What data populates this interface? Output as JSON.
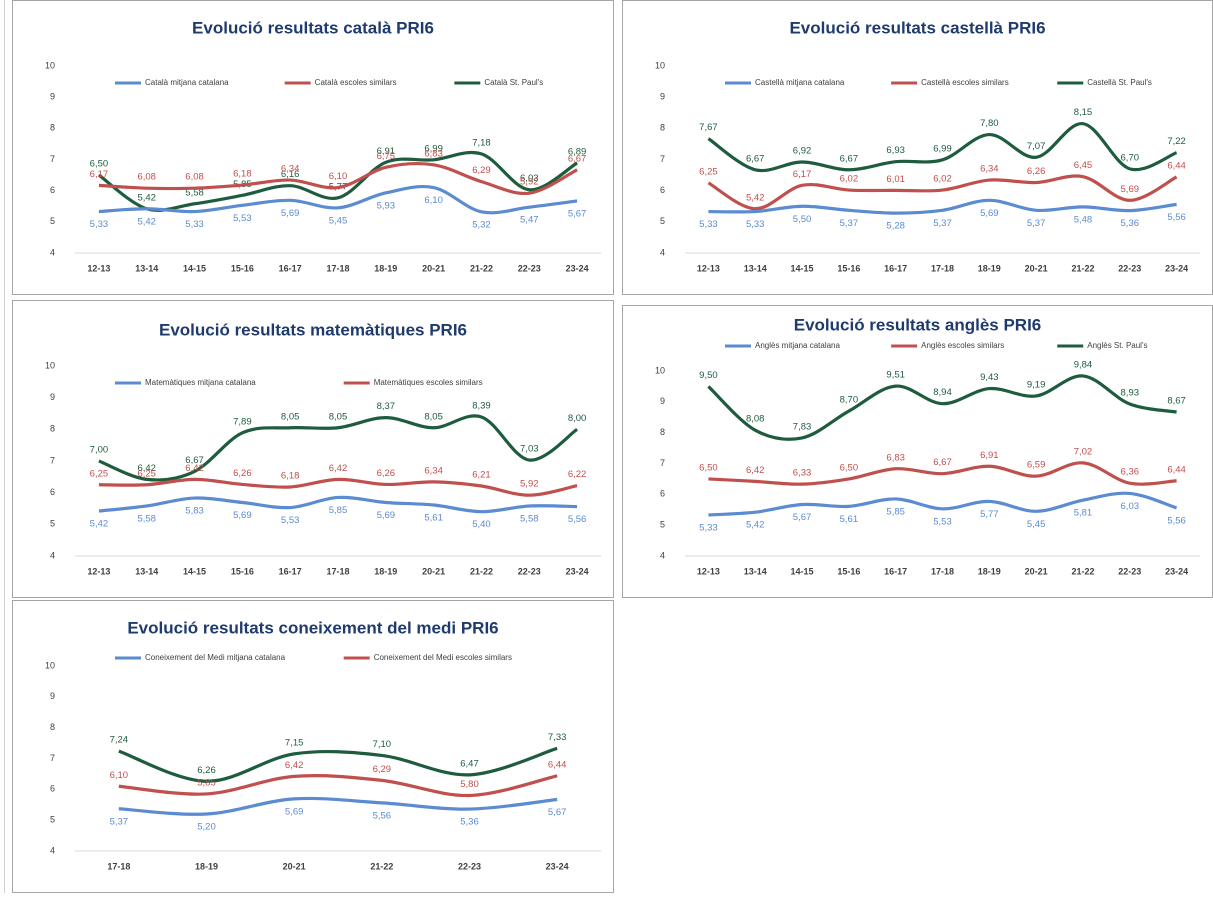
{
  "chart_data": [
    {
      "type": "line",
      "title": "Evolució resultats català PRI6",
      "categories": [
        "12-13",
        "13-14",
        "14-15",
        "15-16",
        "16-17",
        "17-18",
        "18-19",
        "20-21",
        "21-22",
        "22-23",
        "23-24"
      ],
      "ylim": [
        4,
        10
      ],
      "yticks": [
        4,
        5,
        6,
        7,
        8,
        9,
        10
      ],
      "series": [
        {
          "name": "Català mitjana catalana",
          "color": "#5b8bd0",
          "values": [
            5.33,
            5.42,
            5.33,
            5.53,
            5.69,
            5.45,
            5.93,
            6.1,
            5.32,
            5.47,
            5.67
          ],
          "value_labels": [
            "5,33",
            "5,42",
            "5,33",
            "5,53",
            "5,69",
            "5,45",
            "5,93",
            "6,10",
            "5,32",
            "5,47",
            "5,67"
          ]
        },
        {
          "name": "Català escoles similars",
          "color": "#c0504d",
          "values": [
            6.17,
            6.08,
            6.08,
            6.18,
            6.34,
            6.1,
            6.75,
            6.83,
            6.29,
            5.92,
            6.67
          ],
          "value_labels": [
            "6,17",
            "6,08",
            "6,08",
            "6,18",
            "6,34",
            "6,10",
            "6,75",
            "6,83",
            "6,29",
            "5,92",
            "6,67"
          ]
        },
        {
          "name": "Català St. Paul's",
          "color": "#1e5c3e",
          "values": [
            6.5,
            5.42,
            5.58,
            5.85,
            6.16,
            5.77,
            6.91,
            6.99,
            7.18,
            6.03,
            6.89
          ],
          "value_labels": [
            "6,50",
            "5,42",
            "5,58",
            "5,85",
            "6,16",
            "5,77",
            "6,91",
            "6,99",
            "7,18",
            "6,03",
            "6,89"
          ]
        }
      ]
    },
    {
      "type": "line",
      "title": "Evolució resultats castellà PRI6",
      "categories": [
        "12-13",
        "13-14",
        "14-15",
        "15-16",
        "16-17",
        "17-18",
        "18-19",
        "20-21",
        "21-22",
        "22-23",
        "23-24"
      ],
      "ylim": [
        4,
        10
      ],
      "yticks": [
        4,
        5,
        6,
        7,
        8,
        9,
        10
      ],
      "series": [
        {
          "name": "Castellà mitjana catalana",
          "color": "#5b8bd0",
          "values": [
            5.33,
            5.33,
            5.5,
            5.37,
            5.28,
            5.37,
            5.69,
            5.37,
            5.48,
            5.36,
            5.56
          ],
          "value_labels": [
            "5,33",
            "5,33",
            "5,50",
            "5,37",
            "5,28",
            "5,37",
            "5,69",
            "5,37",
            "5,48",
            "5,36",
            "5,56"
          ]
        },
        {
          "name": "Castellà escoles similars",
          "color": "#c0504d",
          "values": [
            6.25,
            5.42,
            6.17,
            6.02,
            6.01,
            6.02,
            6.34,
            6.26,
            6.45,
            5.69,
            6.44
          ],
          "value_labels": [
            "6,25",
            "5,42",
            "6,17",
            "6,02",
            "6,01",
            "6,02",
            "6,34",
            "6,26",
            "6,45",
            "5,69",
            "6,44"
          ]
        },
        {
          "name": "Castellà St. Paul's",
          "color": "#1e5c3e",
          "values": [
            7.67,
            6.67,
            6.92,
            6.67,
            6.93,
            6.99,
            7.8,
            7.07,
            8.15,
            6.7,
            7.22
          ],
          "value_labels": [
            "7,67",
            "6,67",
            "6,92",
            "6,67",
            "6,93",
            "6,99",
            "7,80",
            "7,07",
            "8,15",
            "6,70",
            "7,22"
          ]
        }
      ]
    },
    {
      "type": "line",
      "title": "Evolució resultats matemàtiques PRI6",
      "categories": [
        "12-13",
        "13-14",
        "14-15",
        "15-16",
        "16-17",
        "17-18",
        "18-19",
        "20-21",
        "21-22",
        "22-23",
        "23-24"
      ],
      "ylim": [
        4,
        10
      ],
      "yticks": [
        4,
        5,
        6,
        7,
        8,
        9,
        10
      ],
      "series": [
        {
          "name": "Matemàtiques mitjana catalana",
          "color": "#5b8bd0",
          "values": [
            5.42,
            5.58,
            5.83,
            5.69,
            5.53,
            5.85,
            5.69,
            5.61,
            5.4,
            5.58,
            5.56
          ],
          "value_labels": [
            "5,42",
            "5,58",
            "5,83",
            "5,69",
            "5,53",
            "5,85",
            "5,69",
            "5,61",
            "5,40",
            "5,58",
            "5,56"
          ]
        },
        {
          "name": "Matemàtiques escoles similars",
          "color": "#c0504d",
          "values": [
            6.25,
            6.25,
            6.42,
            6.26,
            6.18,
            6.42,
            6.26,
            6.34,
            6.21,
            5.92,
            6.22
          ],
          "value_labels": [
            "6,25",
            "6,25",
            "6,42",
            "6,26",
            "6,18",
            "6,42",
            "6,26",
            "6,34",
            "6,21",
            "5,92",
            "6,22"
          ]
        },
        {
          "color": "#1e5c3e",
          "values": [
            7.0,
            6.42,
            6.67,
            7.89,
            8.05,
            8.05,
            8.37,
            8.05,
            8.39,
            7.03,
            8.0
          ],
          "value_labels": [
            "7,00",
            "6,42",
            "6,67",
            "7,89",
            "8,05",
            "8,05",
            "8,37",
            "8,05",
            "8,39",
            "7,03",
            "8,00"
          ]
        }
      ]
    },
    {
      "type": "line",
      "title": "Evolució resultats anglès PRI6",
      "categories": [
        "12-13",
        "13-14",
        "14-15",
        "15-16",
        "16-17",
        "17-18",
        "18-19",
        "20-21",
        "21-22",
        "22-23",
        "23-24"
      ],
      "ylim": [
        4,
        10
      ],
      "yticks": [
        4,
        5,
        6,
        7,
        8,
        9,
        10
      ],
      "series": [
        {
          "name": "Anglès mitjana catalana",
          "color": "#5b8bd0",
          "values": [
            5.33,
            5.42,
            5.67,
            5.61,
            5.85,
            5.53,
            5.77,
            5.45,
            5.81,
            6.03,
            5.56
          ],
          "value_labels": [
            "5,33",
            "5,42",
            "5,67",
            "5,61",
            "5,85",
            "5,53",
            "5,77",
            "5,45",
            "5,81",
            "6,03",
            "5,56"
          ]
        },
        {
          "name": "Anglès escoles similars",
          "color": "#c0504d",
          "values": [
            6.5,
            6.42,
            6.33,
            6.5,
            6.83,
            6.67,
            6.91,
            6.59,
            7.02,
            6.36,
            6.44
          ],
          "value_labels": [
            "6,50",
            "6,42",
            "6,33",
            "6,50",
            "6,83",
            "6,67",
            "6,91",
            "6,59",
            "7,02",
            "6,36",
            "6,44"
          ]
        },
        {
          "name": "Anglès St. Paul's",
          "color": "#1e5c3e",
          "values": [
            9.5,
            8.08,
            7.83,
            8.7,
            9.51,
            8.94,
            9.43,
            9.19,
            9.84,
            8.93,
            8.67
          ],
          "value_labels": [
            "9,50",
            "8,08",
            "7,83",
            "8,70",
            "9,51",
            "8,94",
            "9,43",
            "9,19",
            "9,84",
            "8,93",
            "8,67"
          ]
        }
      ]
    },
    {
      "type": "line",
      "title": "Evolució resultats coneixement del medi PRI6",
      "categories": [
        "17-18",
        "18-19",
        "20-21",
        "21-22",
        "22-23",
        "23-24"
      ],
      "ylim": [
        4,
        10
      ],
      "yticks": [
        4,
        5,
        6,
        7,
        8,
        9,
        10
      ],
      "series": [
        {
          "name": "Coneixement del Medi mitjana catalana",
          "color": "#5b8bd0",
          "values": [
            5.37,
            5.2,
            5.69,
            5.56,
            5.36,
            5.67
          ],
          "value_labels": [
            "5,37",
            "5,20",
            "5,69",
            "5,56",
            "5,36",
            "5,67"
          ]
        },
        {
          "name": "Coneixement del Medi escoles similars",
          "color": "#c0504d",
          "values": [
            6.1,
            5.85,
            6.42,
            6.29,
            5.8,
            6.44
          ],
          "value_labels": [
            "6,10",
            "5,85",
            "6,42",
            "6,29",
            "5,80",
            "6,44"
          ]
        },
        {
          "color": "#1e5c3e",
          "values": [
            7.24,
            6.26,
            7.15,
            7.1,
            6.47,
            7.33
          ],
          "value_labels": [
            "7,24",
            "6,26",
            "7,15",
            "7,10",
            "6,47",
            "7,33"
          ]
        }
      ]
    }
  ]
}
